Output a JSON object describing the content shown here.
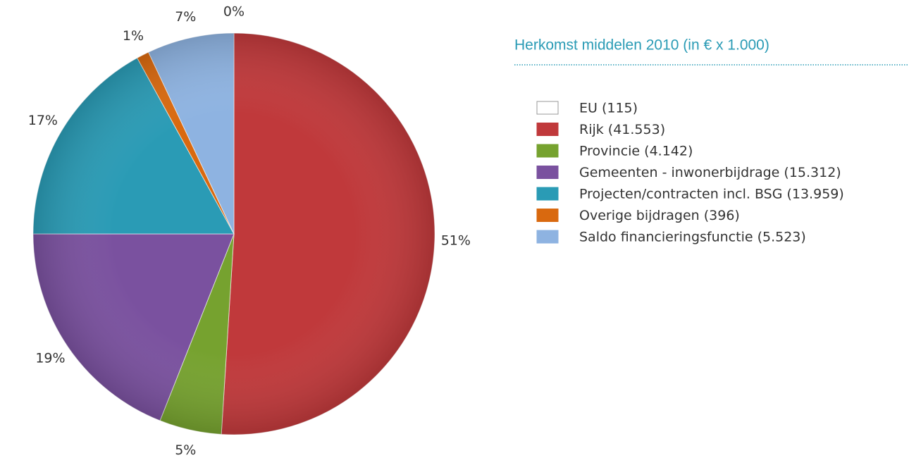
{
  "chart_data": {
    "type": "pie",
    "title": "Herkomst middelen 2010 (in € x 1.000)",
    "categories": [
      "EU (115)",
      "Rijk (41.553)",
      "Provincie (4.142)",
      "Gemeenten - inwonerbijdrage (15.312)",
      "Projecten/contracten incl. BSG (13.959)",
      "Overige bijdragen (396)",
      "Saldo financieringsfunctie (5.523)"
    ],
    "values": [
      0,
      51,
      5,
      19,
      17,
      1,
      7
    ],
    "value_labels": [
      "0%",
      "51%",
      "5%",
      "19%",
      "17%",
      "1%",
      "7%"
    ],
    "colors": [
      "#ffffff",
      "#c0393b",
      "#76a22f",
      "#7a519f",
      "#2a9bb5",
      "#d9690f",
      "#8eb3e1"
    ]
  }
}
